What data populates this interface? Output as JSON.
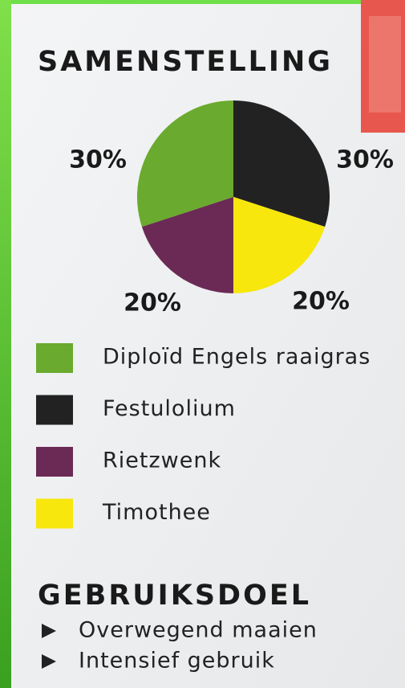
{
  "chart_data": {
    "type": "pie",
    "title": "SAMENSTELLING",
    "categories": [
      "Diploïd Engels raaigras",
      "Festulolium",
      "Rietzwenk",
      "Timothee"
    ],
    "values": [
      30,
      30,
      20,
      20
    ],
    "value_labels": [
      "30%",
      "30%",
      "20%",
      "20%"
    ],
    "colors": [
      "#6aaa2e",
      "#222222",
      "#6b2a55",
      "#f7e70c"
    ]
  },
  "usage": {
    "title": "GEBRUIKSDOEL",
    "items": [
      "Overwegend maaien",
      "Intensief gebruik"
    ]
  }
}
